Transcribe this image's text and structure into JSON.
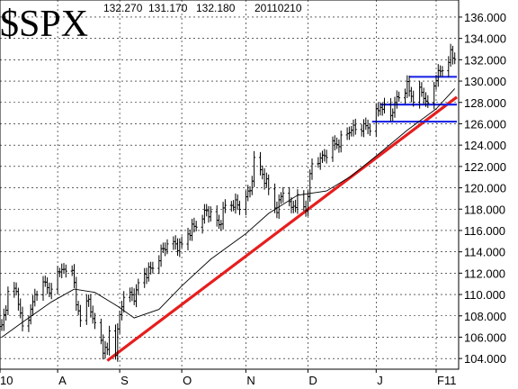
{
  "chart_data": {
    "type": "ohlc",
    "title": "$SPX",
    "header_values": [
      "132.270",
      "131.170",
      "132.180",
      "20110210"
    ],
    "ylim": [
      103.0,
      137.6
    ],
    "y_ticks": [
      "104.000",
      "106.000",
      "108.000",
      "110.000",
      "112.000",
      "114.000",
      "116.000",
      "118.000",
      "120.000",
      "122.000",
      "124.000",
      "126.000",
      "128.000",
      "130.000",
      "132.000",
      "134.000",
      "136.000"
    ],
    "x_ticks": [
      "10",
      "A",
      "S",
      "O",
      "N",
      "D",
      "J",
      "F11"
    ],
    "grid": true,
    "close_points": [
      [
        "2010-07-06",
        107.0
      ],
      [
        "2010-07-09",
        110.0
      ],
      [
        "2010-07-13",
        110.5
      ],
      [
        "2010-07-16",
        106.8
      ],
      [
        "2010-07-20",
        108.5
      ],
      [
        "2010-07-23",
        110.5
      ],
      [
        "2010-07-27",
        111.0
      ],
      [
        "2010-07-30",
        110.2
      ],
      [
        "2010-08-03",
        112.5
      ],
      [
        "2010-08-06",
        112.0
      ],
      [
        "2010-08-09",
        112.8
      ],
      [
        "2010-08-11",
        108.9
      ],
      [
        "2010-08-13",
        108.0
      ],
      [
        "2010-08-17",
        109.4
      ],
      [
        "2010-08-20",
        107.1
      ],
      [
        "2010-08-24",
        105.0
      ],
      [
        "2010-08-26",
        104.7
      ],
      [
        "2010-08-27",
        106.5
      ],
      [
        "2010-08-30",
        104.8
      ],
      [
        "2010-09-01",
        108.0
      ],
      [
        "2010-09-03",
        110.0
      ],
      [
        "2010-09-08",
        109.8
      ],
      [
        "2010-09-10",
        110.9
      ],
      [
        "2010-09-14",
        112.1
      ],
      [
        "2010-09-17",
        112.5
      ],
      [
        "2010-09-21",
        113.9
      ],
      [
        "2010-09-24",
        114.8
      ],
      [
        "2010-09-29",
        114.6
      ],
      [
        "2010-10-01",
        114.6
      ],
      [
        "2010-10-05",
        116.0
      ],
      [
        "2010-10-08",
        116.5
      ],
      [
        "2010-10-13",
        117.8
      ],
      [
        "2010-10-15",
        117.6
      ],
      [
        "2010-10-19",
        116.5
      ],
      [
        "2010-10-22",
        118.3
      ],
      [
        "2010-10-26",
        118.5
      ],
      [
        "2010-10-29",
        118.3
      ],
      [
        "2010-11-03",
        119.7
      ],
      [
        "2010-11-05",
        122.5
      ],
      [
        "2010-11-09",
        121.3
      ],
      [
        "2010-11-12",
        119.9
      ],
      [
        "2010-11-16",
        117.8
      ],
      [
        "2010-11-19",
        119.9
      ],
      [
        "2010-11-23",
        118.0
      ],
      [
        "2010-11-26",
        118.9
      ],
      [
        "2010-11-30",
        118.0
      ],
      [
        "2010-12-03",
        122.3
      ],
      [
        "2010-12-08",
        122.8
      ],
      [
        "2010-12-13",
        124.0
      ],
      [
        "2010-12-16",
        124.2
      ],
      [
        "2010-12-21",
        125.4
      ],
      [
        "2010-12-27",
        125.7
      ],
      [
        "2010-12-31",
        125.7
      ],
      [
        "2011-01-05",
        127.7
      ],
      [
        "2011-01-10",
        126.9
      ],
      [
        "2011-01-13",
        128.3
      ],
      [
        "2011-01-18",
        129.5
      ],
      [
        "2011-01-21",
        128.3
      ],
      [
        "2011-01-25",
        129.1
      ],
      [
        "2011-01-28",
        127.6
      ],
      [
        "2011-02-01",
        130.4
      ],
      [
        "2011-02-04",
        131.1
      ],
      [
        "2011-02-08",
        132.4
      ],
      [
        "2011-02-10",
        132.2
      ]
    ],
    "moving_average": [
      [
        "2010-07-06",
        106.0
      ],
      [
        "2010-07-16",
        107.4
      ],
      [
        "2010-07-30",
        109.3
      ],
      [
        "2010-08-10",
        110.5
      ],
      [
        "2010-08-20",
        110.2
      ],
      [
        "2010-08-31",
        108.9
      ],
      [
        "2010-09-08",
        107.8
      ],
      [
        "2010-09-20",
        108.6
      ],
      [
        "2010-10-01",
        110.8
      ],
      [
        "2010-10-15",
        113.3
      ],
      [
        "2010-11-01",
        115.7
      ],
      [
        "2010-11-12",
        117.6
      ],
      [
        "2010-11-26",
        119.3
      ],
      [
        "2010-12-10",
        119.7
      ],
      [
        "2010-12-22",
        121.1
      ],
      [
        "2011-01-05",
        123.3
      ],
      [
        "2011-01-18",
        125.4
      ],
      [
        "2011-02-01",
        127.4
      ],
      [
        "2011-02-10",
        129.3
      ]
    ],
    "trendline": [
      [
        "2010-08-26",
        103.8
      ],
      [
        "2011-02-11",
        128.5
      ]
    ],
    "support_lines": [
      {
        "level": 126.2,
        "start": "2011-01-01",
        "end": "2011-02-11"
      },
      {
        "level": 127.8,
        "start": "2011-01-05",
        "end": "2011-02-11"
      },
      {
        "level": 130.4,
        "start": "2011-01-19",
        "end": "2011-02-11"
      }
    ],
    "colors": {
      "trendline": "#e61e1e",
      "support": "#1e28e6",
      "price": "#000000",
      "grid": "#000000"
    }
  }
}
